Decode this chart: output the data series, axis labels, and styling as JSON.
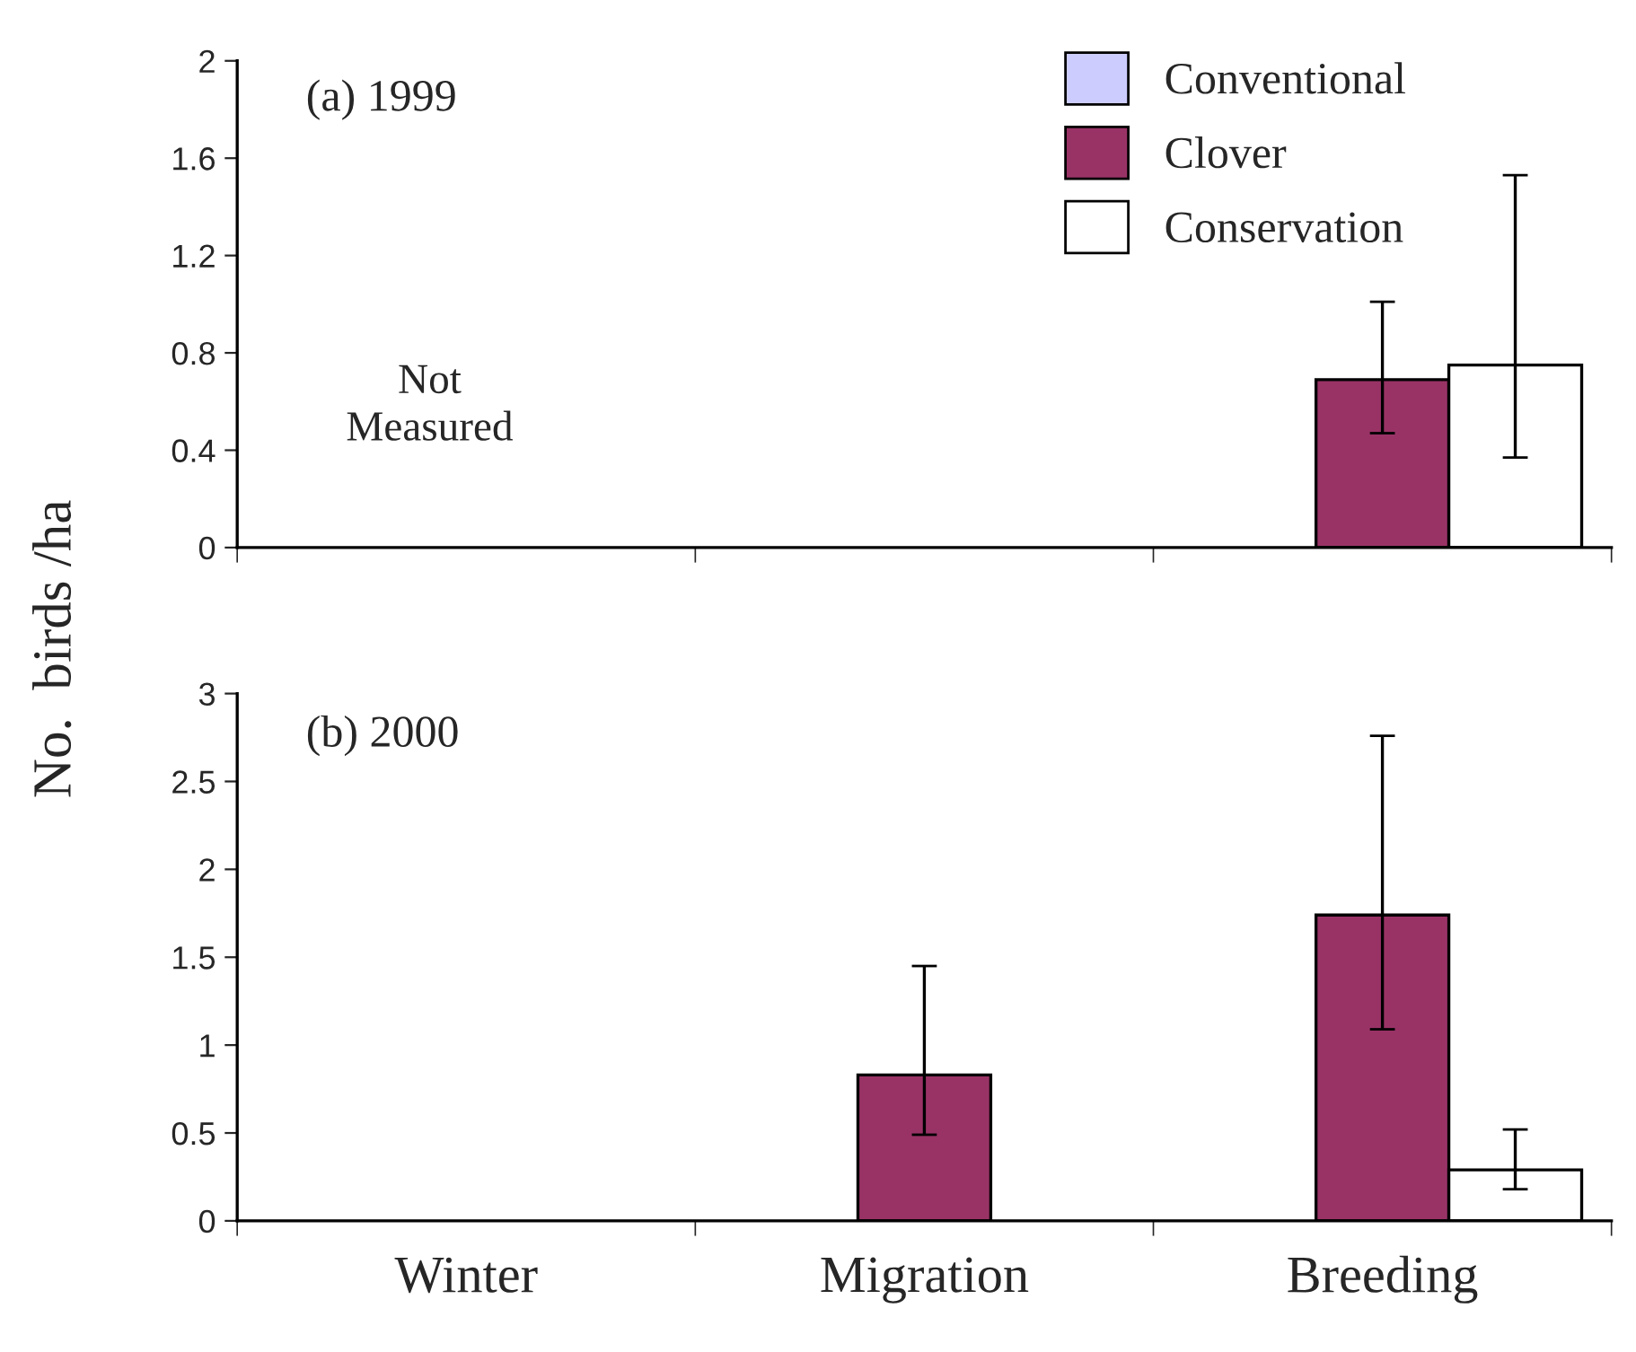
{
  "chart_data": [
    {
      "type": "bar",
      "title": "(a) 1999",
      "ylabel": "No.  birds /ha",
      "categories": [
        null,
        null,
        null
      ],
      "series": [
        {
          "name": "Conventional",
          "color": "#ccccff",
          "values": [
            null,
            null,
            null
          ]
        },
        {
          "name": "Clover",
          "color": "#993366",
          "values": [
            null,
            null,
            0.69
          ],
          "errors": [
            null,
            null,
            [
              0.47,
              1.01
            ]
          ]
        },
        {
          "name": "Conservation",
          "color": "#ffffff",
          "values": [
            null,
            null,
            0.75
          ],
          "errors": [
            null,
            null,
            [
              0.37,
              1.53
            ]
          ]
        }
      ],
      "ylim": [
        0,
        2
      ],
      "yticks": [
        0,
        0.4,
        0.8,
        1.2,
        1.6,
        2
      ],
      "grid": false,
      "legend": "top right",
      "annotations": [
        "Not\nMeasured"
      ]
    },
    {
      "type": "bar",
      "title": "(b) 2000",
      "categories": [
        "Winter",
        "Migration",
        "Breeding"
      ],
      "series": [
        {
          "values": [
            null,
            null,
            null
          ]
        },
        {
          "color": "#993366",
          "values": [
            null,
            0.83,
            1.74
          ],
          "errors": [
            null,
            [
              0.49,
              1.45
            ],
            [
              1.09,
              2.76
            ]
          ]
        },
        {
          "color": "#ffffff",
          "values": [
            null,
            null,
            0.29
          ],
          "errors": [
            null,
            null,
            [
              0.18,
              0.52
            ]
          ]
        }
      ],
      "ylim": [
        0,
        3
      ],
      "yticks": [
        0,
        0.5,
        1,
        1.5,
        2,
        2.5,
        3
      ],
      "grid": false
    }
  ]
}
